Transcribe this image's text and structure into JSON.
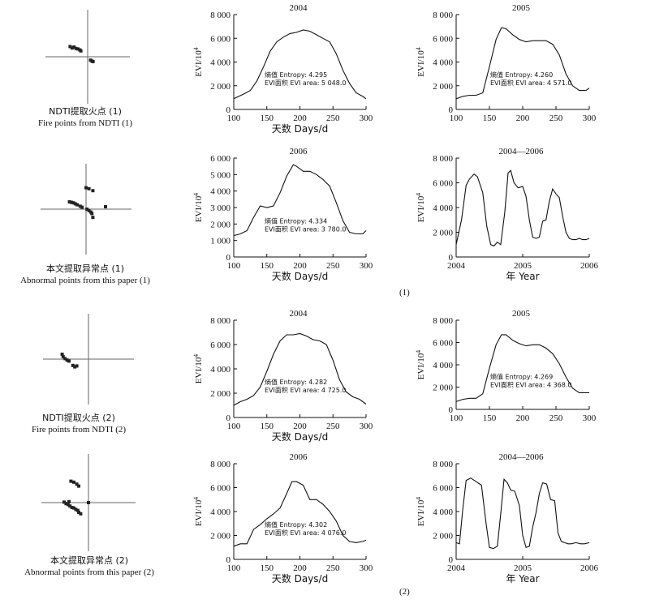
{
  "parts": [
    "(1)",
    "(2)"
  ],
  "scatter_captions": [
    {
      "zh": "NDTI提取火点 (1)",
      "en": "Fire points from NDTI (1)"
    },
    {
      "zh": "本文提取异常点 (1)",
      "en": "Abnormal points from this paper (1)"
    },
    {
      "zh": "NDTI提取火点 (2)",
      "en": "Fire points from NDTI (2)"
    },
    {
      "zh": "本文提取异常点 (2)",
      "en": "Abnormal points from this paper (2)"
    }
  ],
  "chart_data": [
    {
      "type": "line",
      "title": "2004",
      "xlabel": "天数 Days/d",
      "ylabel": "EVI/10^4",
      "xlim": [
        100,
        300
      ],
      "ylim": [
        0,
        8000
      ],
      "xticks": [
        "100",
        "150",
        "200",
        "250",
        "300"
      ],
      "yticks": [
        "0",
        "2 000",
        "4 000",
        "6 000",
        "8 000"
      ],
      "annotation": [
        "熵值 Entropy: 4.295",
        "EVI面积 EVI area: 5 048.0"
      ],
      "series": [
        {
          "x": [
            100,
            115,
            125,
            135,
            145,
            155,
            165,
            175,
            185,
            195,
            205,
            215,
            225,
            235,
            245,
            255,
            265,
            275,
            285,
            295,
            300
          ],
          "y": [
            900,
            1300,
            1600,
            2400,
            3600,
            4900,
            5700,
            6100,
            6400,
            6500,
            6700,
            6600,
            6300,
            6000,
            5700,
            4700,
            3300,
            2200,
            1400,
            1100,
            900
          ]
        }
      ]
    },
    {
      "type": "line",
      "title": "2005",
      "xlabel": "",
      "ylabel": "EVI/10^4",
      "xlim": [
        100,
        300
      ],
      "ylim": [
        0,
        8000
      ],
      "xticks": [
        "100",
        "150",
        "200",
        "250",
        "300"
      ],
      "yticks": [
        "0",
        "2 000",
        "4 000",
        "6 000",
        "8 000"
      ],
      "annotation": [
        "熵值 Entropy: 4.260",
        "EVI面积 EVI area: 4 571.0"
      ],
      "series": [
        {
          "x": [
            100,
            110,
            120,
            130,
            140,
            150,
            160,
            168,
            175,
            185,
            195,
            205,
            215,
            225,
            235,
            245,
            255,
            265,
            275,
            285,
            295,
            300
          ],
          "y": [
            900,
            1100,
            1200,
            1200,
            1400,
            3600,
            5900,
            6900,
            6800,
            6300,
            5900,
            5700,
            5800,
            5800,
            5800,
            5500,
            4600,
            3000,
            2000,
            1600,
            1600,
            1800
          ]
        }
      ]
    },
    {
      "type": "line",
      "title": "2006",
      "xlabel": "天数 Days/d",
      "ylabel": "EVI/10^4",
      "xlim": [
        100,
        300
      ],
      "ylim": [
        0,
        6000
      ],
      "xticks": [
        "100",
        "150",
        "200",
        "250",
        "300"
      ],
      "yticks": [
        "0",
        "1 000",
        "2 000",
        "3 000",
        "4 000",
        "5 000",
        "6 000"
      ],
      "annotation": [
        "熵值 Entropy: 4.334",
        "EVI面积 EVI area: 3 780.0"
      ],
      "series": [
        {
          "x": [
            100,
            110,
            120,
            130,
            140,
            150,
            160,
            170,
            180,
            190,
            195,
            205,
            215,
            225,
            235,
            245,
            255,
            265,
            275,
            285,
            295,
            300
          ],
          "y": [
            1300,
            1400,
            1600,
            2400,
            3100,
            3000,
            3100,
            3900,
            4900,
            5600,
            5500,
            5200,
            5200,
            5000,
            4700,
            4300,
            3300,
            2200,
            1500,
            1400,
            1400,
            1600
          ]
        }
      ]
    },
    {
      "type": "line",
      "title": "2004—2006",
      "xlabel": "年 Year",
      "ylabel": "EVI/10^4",
      "xlim": [
        2004,
        2006
      ],
      "ylim": [
        0,
        8000
      ],
      "xticks": [
        "2004",
        "2005",
        "2006"
      ],
      "yticks": [
        "0",
        "2 000",
        "4 000",
        "6 000",
        "8 000"
      ],
      "annotation": [],
      "series": [
        {
          "x": [
            2004.0,
            2004.08,
            2004.15,
            2004.2,
            2004.27,
            2004.32,
            2004.4,
            2004.46,
            2004.52,
            2004.57,
            2004.62,
            2004.67,
            2004.73,
            2004.78,
            2004.82,
            2004.87,
            2004.93,
            2005.0,
            2005.05,
            2005.1,
            2005.15,
            2005.2,
            2005.25,
            2005.3,
            2005.35,
            2005.4,
            2005.45,
            2005.5,
            2005.55,
            2005.6,
            2005.65,
            2005.7,
            2005.75,
            2005.8,
            2005.85,
            2005.9,
            2005.95,
            2006.0
          ],
          "y": [
            1000,
            3000,
            5800,
            6300,
            6700,
            6500,
            5200,
            2500,
            1000,
            900,
            1200,
            1000,
            3600,
            6800,
            7000,
            6000,
            5600,
            5700,
            4900,
            3000,
            1600,
            1500,
            1600,
            2900,
            3000,
            4500,
            5500,
            5100,
            4800,
            3300,
            2000,
            1500,
            1400,
            1400,
            1500,
            1400,
            1400,
            1500
          ]
        }
      ]
    },
    {
      "type": "line",
      "title": "2004",
      "xlabel": "天数 Days/d",
      "ylabel": "EVI/10^4",
      "xlim": [
        100,
        300
      ],
      "ylim": [
        0,
        8000
      ],
      "xticks": [
        "100",
        "150",
        "200",
        "250",
        "300"
      ],
      "yticks": [
        "0",
        "2 000",
        "4 000",
        "6 000",
        "8 000"
      ],
      "annotation": [
        "熵值 Entropy: 4.282",
        "EVI面积 EVI area: 4 725.0"
      ],
      "series": [
        {
          "x": [
            100,
            110,
            120,
            130,
            140,
            150,
            160,
            170,
            180,
            190,
            200,
            210,
            220,
            230,
            240,
            250,
            260,
            270,
            280,
            290,
            300
          ],
          "y": [
            1000,
            1300,
            1500,
            1800,
            2500,
            3800,
            5200,
            6300,
            6800,
            6800,
            6900,
            6700,
            6400,
            6300,
            6000,
            4700,
            3100,
            2100,
            1700,
            1500,
            1100
          ]
        }
      ]
    },
    {
      "type": "line",
      "title": "2005",
      "xlabel": "",
      "ylabel": "EVI/10^4",
      "xlim": [
        100,
        300
      ],
      "ylim": [
        0,
        8000
      ],
      "xticks": [
        "100",
        "150",
        "200",
        "250",
        "300"
      ],
      "yticks": [
        "0",
        "2 000",
        "4 000",
        "6 000",
        "8 000"
      ],
      "annotation": [
        "熵值 Entropy: 4.269",
        "EVI面积 EVI area: 4 368.0"
      ],
      "series": [
        {
          "x": [
            100,
            110,
            120,
            130,
            140,
            150,
            160,
            168,
            175,
            185,
            195,
            205,
            215,
            225,
            235,
            245,
            255,
            265,
            275,
            285,
            295,
            300
          ],
          "y": [
            700,
            900,
            1000,
            1000,
            1400,
            3700,
            5800,
            6700,
            6700,
            6200,
            5900,
            5700,
            5800,
            5800,
            5500,
            5000,
            4100,
            2900,
            1900,
            1500,
            1500,
            1500
          ]
        }
      ]
    },
    {
      "type": "line",
      "title": "2006",
      "xlabel": "天数 Days/d",
      "ylabel": "EVI/10^4",
      "xlim": [
        100,
        300
      ],
      "ylim": [
        0,
        8000
      ],
      "xticks": [
        "100",
        "150",
        "200",
        "250",
        "300"
      ],
      "yticks": [
        "0",
        "2 000",
        "4 000",
        "6 000",
        "8 000"
      ],
      "annotation": [
        "熵值 Entropy: 4.302",
        "EVI面积 EVI area: 4 076.0"
      ],
      "series": [
        {
          "x": [
            100,
            110,
            120,
            130,
            140,
            150,
            160,
            170,
            180,
            188,
            195,
            205,
            215,
            225,
            235,
            245,
            255,
            265,
            275,
            285,
            295,
            300
          ],
          "y": [
            1100,
            1300,
            1300,
            2500,
            2900,
            3400,
            3800,
            4300,
            5500,
            6500,
            6500,
            6200,
            5000,
            5000,
            4600,
            4000,
            3200,
            2000,
            1500,
            1400,
            1500,
            1600
          ]
        }
      ]
    },
    {
      "type": "line",
      "title": "2004—2006",
      "xlabel": "年 Year",
      "ylabel": "EVI/10^4",
      "xlim": [
        2004,
        2006
      ],
      "ylim": [
        0,
        8000
      ],
      "xticks": [
        "2004",
        "2005",
        "2006"
      ],
      "yticks": [
        "0",
        "2 000",
        "4 000",
        "6 000",
        "8 000"
      ],
      "annotation": [],
      "series": [
        {
          "x": [
            2004.0,
            2004.05,
            2004.1,
            2004.15,
            2004.22,
            2004.3,
            2004.38,
            2004.45,
            2004.5,
            2004.56,
            2004.62,
            2004.67,
            2004.72,
            2004.77,
            2004.82,
            2004.88,
            2004.95,
            2005.0,
            2005.05,
            2005.1,
            2005.15,
            2005.2,
            2005.25,
            2005.3,
            2005.36,
            2005.42,
            2005.48,
            2005.53,
            2005.58,
            2005.63,
            2005.68,
            2005.73,
            2005.8,
            2005.87,
            2005.93,
            2006.0
          ],
          "y": [
            1400,
            1300,
            4200,
            6600,
            6800,
            6500,
            6200,
            3000,
            1000,
            900,
            1100,
            3800,
            6700,
            6400,
            5800,
            5700,
            4500,
            2000,
            1000,
            1100,
            2700,
            3900,
            5500,
            6400,
            6300,
            5000,
            4900,
            2200,
            1500,
            1400,
            1300,
            1300,
            1400,
            1300,
            1300,
            1400
          ]
        }
      ]
    }
  ],
  "scatter_data": [
    {
      "type": "scatter",
      "series": [
        {
          "values": [
            [
              -1.8,
              1.05
            ],
            [
              -1.6,
              0.9
            ],
            [
              -1.4,
              1.0
            ],
            [
              -1.2,
              0.85
            ],
            [
              -1.0,
              0.8
            ],
            [
              -0.8,
              0.7
            ],
            [
              -0.7,
              0.6
            ],
            [
              0.3,
              -0.35
            ],
            [
              0.45,
              -0.45
            ],
            [
              0.55,
              -0.5
            ]
          ]
        }
      ]
    },
    {
      "type": "scatter",
      "series": [
        {
          "values": [
            [
              0.0,
              2.2
            ],
            [
              0.3,
              2.1
            ],
            [
              0.7,
              1.9
            ],
            [
              -1.7,
              0.75
            ],
            [
              -1.5,
              0.7
            ],
            [
              -1.3,
              0.65
            ],
            [
              -1.1,
              0.55
            ],
            [
              -0.9,
              0.45
            ],
            [
              -0.6,
              0.3
            ],
            [
              -0.4,
              0.2
            ],
            [
              0.1,
              0.0
            ],
            [
              0.3,
              -0.15
            ],
            [
              0.5,
              -0.3
            ],
            [
              0.6,
              -0.45
            ],
            [
              2.0,
              0.25
            ],
            [
              0.7,
              -0.85
            ]
          ]
        }
      ]
    },
    {
      "type": "scatter",
      "series": [
        {
          "values": [
            [
              -2.7,
              0.5
            ],
            [
              -2.6,
              0.25
            ],
            [
              -2.4,
              0.05
            ],
            [
              -2.2,
              -0.1
            ],
            [
              -2.0,
              -0.2
            ],
            [
              -1.6,
              -0.65
            ],
            [
              -1.4,
              -0.8
            ],
            [
              -1.2,
              -0.7
            ]
          ]
        }
      ]
    },
    {
      "type": "scatter",
      "series": [
        {
          "values": [
            [
              -1.8,
              2.2
            ],
            [
              -1.5,
              2.1
            ],
            [
              -1.2,
              1.9
            ],
            [
              -1.0,
              1.7
            ],
            [
              -2.5,
              0.05
            ],
            [
              -2.3,
              -0.1
            ],
            [
              -2.1,
              -0.2
            ],
            [
              -1.9,
              -0.35
            ],
            [
              -1.7,
              -0.5
            ],
            [
              -1.5,
              -0.55
            ],
            [
              -1.3,
              -0.7
            ],
            [
              -1.1,
              -0.8
            ],
            [
              -1.0,
              -1.0
            ],
            [
              -0.8,
              -1.15
            ],
            [
              0.0,
              0.0
            ],
            [
              -2.0,
              0.1
            ]
          ]
        }
      ]
    }
  ]
}
